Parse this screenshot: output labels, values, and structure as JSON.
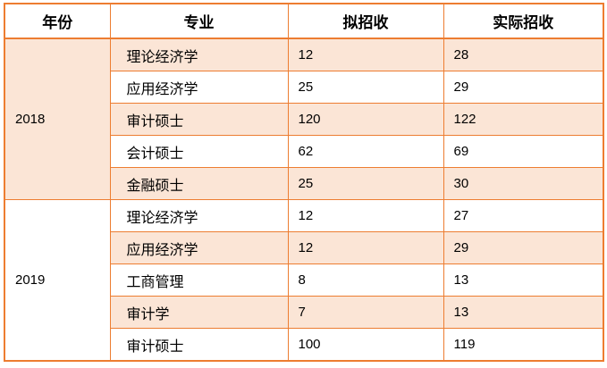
{
  "chart_data": {
    "type": "table",
    "columns": [
      "年份",
      "专业",
      "拟招收",
      "实际招收"
    ],
    "groups": [
      {
        "year": "2018",
        "rows": [
          [
            "理论经济学",
            "12",
            "28"
          ],
          [
            "应用经济学",
            "25",
            "29"
          ],
          [
            "审计硕士",
            "120",
            "122"
          ],
          [
            "会计硕士",
            "62",
            "69"
          ],
          [
            "金融硕士",
            "25",
            "30"
          ]
        ]
      },
      {
        "year": "2019",
        "rows": [
          [
            "理论经济学",
            "12",
            "27"
          ],
          [
            "应用经济学",
            "12",
            "29"
          ],
          [
            "工商管理",
            "8",
            "13"
          ],
          [
            "审计学",
            "7",
            "13"
          ],
          [
            "审计硕士",
            "100",
            "119"
          ]
        ]
      }
    ],
    "layout": {
      "banding": "alternating rows starting peach",
      "year_column_merged": true
    }
  },
  "colors": {
    "border": "#ED7D31",
    "row_band": "#FBE5D6",
    "background": "#FFFFFF",
    "text": "#000000"
  }
}
